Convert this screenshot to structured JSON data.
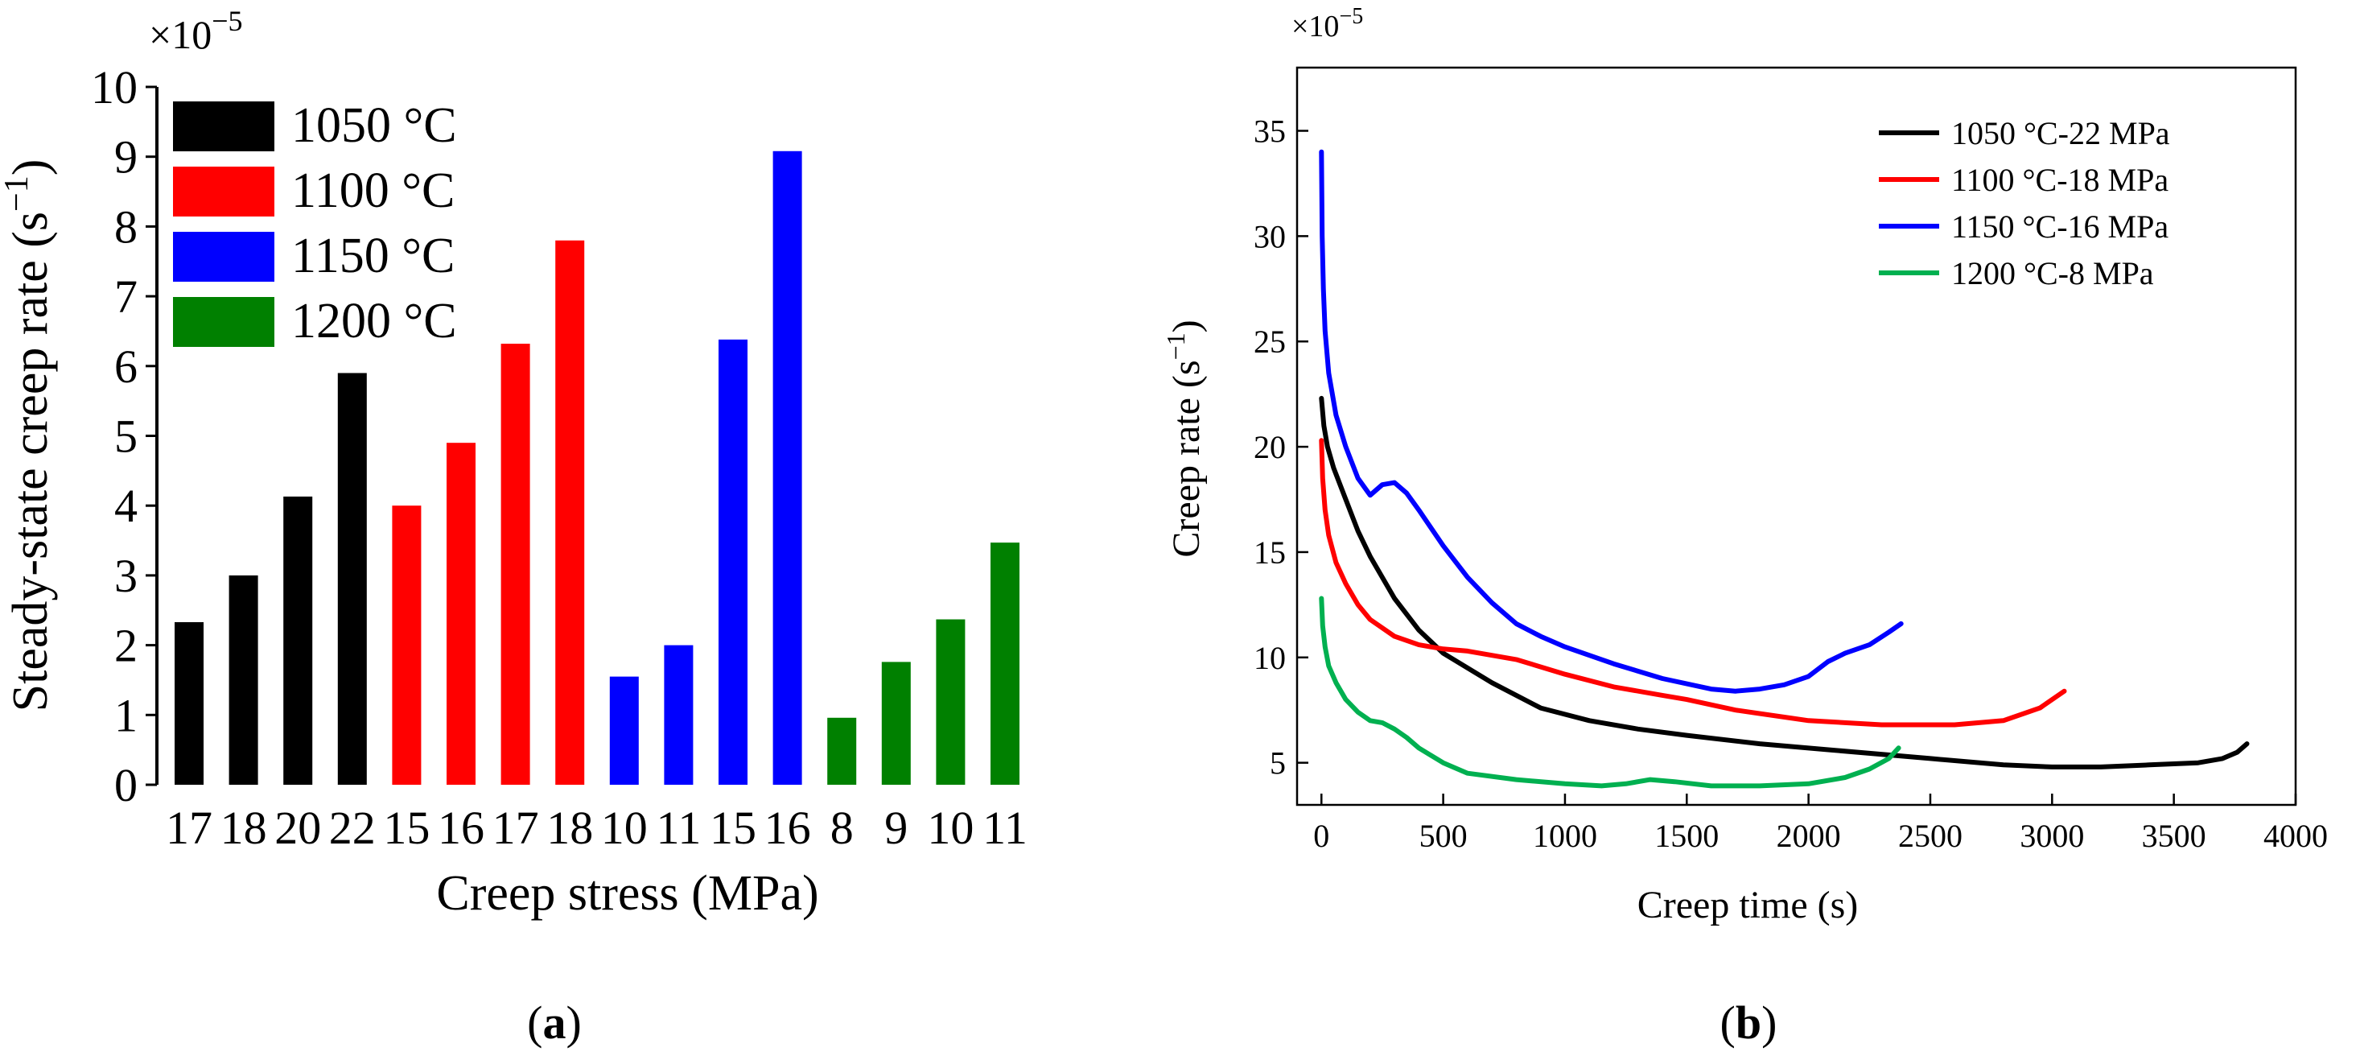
{
  "chart_data": [
    {
      "type": "bar",
      "panel_label": "a",
      "exponent_label": "×10",
      "exponent_power": "−5",
      "ylabel": "Steady-state creep rate (s",
      "ylabel_power": "−1",
      "ylabel_close": ")",
      "xlabel": "Creep stress (MPa)",
      "ylim": [
        0,
        10
      ],
      "yticks": [
        0,
        1,
        2,
        3,
        4,
        5,
        6,
        7,
        8,
        9,
        10
      ],
      "tick_labels": [
        "17",
        "18",
        "20",
        "22",
        "15",
        "16",
        "17",
        "18",
        "10",
        "11",
        "15",
        "16",
        "8",
        "9",
        "10",
        "11"
      ],
      "series": [
        {
          "name": "1050 °C",
          "color": "#000000",
          "values": [
            2.33,
            3.0,
            4.13,
            5.9
          ]
        },
        {
          "name": "1100 °C",
          "color": "#ff0000",
          "values": [
            4.0,
            4.9,
            6.32,
            7.8
          ]
        },
        {
          "name": "1150 °C",
          "color": "#0000ff",
          "values": [
            1.55,
            2.0,
            6.38,
            9.08
          ]
        },
        {
          "name": "1200 °C",
          "color": "#008000",
          "values": [
            0.96,
            1.76,
            2.37,
            3.47
          ]
        }
      ],
      "legend_position": "top-left"
    },
    {
      "type": "line",
      "panel_label": "b",
      "exponent_label": "×10",
      "exponent_power": "−5",
      "ylabel": "Creep rate (s",
      "ylabel_power": "−1",
      "ylabel_close": ")",
      "xlabel": "Creep time (s)",
      "xlim": [
        -100,
        4000
      ],
      "ylim": [
        3,
        38
      ],
      "xticks": [
        0,
        500,
        1000,
        1500,
        2000,
        2500,
        3000,
        3500,
        4000
      ],
      "yticks": [
        5,
        10,
        15,
        20,
        25,
        30,
        35
      ],
      "legend_position": "top-right",
      "series": [
        {
          "name": "1050 °C-22 MPa",
          "color": "#000000",
          "x": [
            0,
            10,
            25,
            50,
            100,
            150,
            200,
            300,
            400,
            500,
            700,
            900,
            1100,
            1300,
            1500,
            1800,
            2100,
            2500,
            2800,
            3000,
            3200,
            3400,
            3600,
            3700,
            3760,
            3800
          ],
          "y": [
            22.3,
            21.0,
            20.0,
            19.0,
            17.5,
            16.0,
            14.8,
            12.8,
            11.3,
            10.2,
            8.8,
            7.6,
            7.0,
            6.6,
            6.3,
            5.9,
            5.6,
            5.2,
            4.9,
            4.8,
            4.8,
            4.9,
            5.0,
            5.2,
            5.5,
            5.9
          ]
        },
        {
          "name": "1100 °C-18 MPa",
          "color": "#ff0000",
          "x": [
            0,
            5,
            15,
            30,
            60,
            100,
            150,
            200,
            300,
            400,
            500,
            600,
            800,
            1000,
            1200,
            1400,
            1500,
            1700,
            2000,
            2300,
            2600,
            2800,
            2950,
            3050
          ],
          "y": [
            20.3,
            18.5,
            17.0,
            15.8,
            14.5,
            13.5,
            12.5,
            11.8,
            11.0,
            10.6,
            10.4,
            10.3,
            9.9,
            9.2,
            8.6,
            8.2,
            8.0,
            7.5,
            7.0,
            6.8,
            6.8,
            7.0,
            7.6,
            8.4
          ]
        },
        {
          "name": "1150 °C-16 MPa",
          "color": "#0000ff",
          "x": [
            0,
            3,
            8,
            15,
            30,
            60,
            100,
            150,
            200,
            250,
            300,
            350,
            400,
            500,
            600,
            700,
            800,
            900,
            1000,
            1200,
            1400,
            1600,
            1700,
            1800,
            1900,
            2000,
            2080,
            2150,
            2250,
            2330,
            2380
          ],
          "y": [
            34.0,
            30.0,
            27.5,
            25.5,
            23.5,
            21.5,
            20.0,
            18.5,
            17.7,
            18.2,
            18.3,
            17.8,
            17.0,
            15.3,
            13.8,
            12.6,
            11.6,
            11.0,
            10.5,
            9.7,
            9.0,
            8.5,
            8.4,
            8.5,
            8.7,
            9.1,
            9.8,
            10.2,
            10.6,
            11.2,
            11.6
          ]
        },
        {
          "name": "1200 °C-8 MPa",
          "color": "#00b050",
          "x": [
            0,
            5,
            15,
            30,
            60,
            100,
            150,
            200,
            250,
            300,
            350,
            400,
            500,
            600,
            800,
            1000,
            1150,
            1250,
            1350,
            1450,
            1600,
            1800,
            2000,
            2150,
            2250,
            2330,
            2370
          ],
          "y": [
            12.8,
            11.5,
            10.5,
            9.6,
            8.8,
            8.0,
            7.4,
            7.0,
            6.9,
            6.6,
            6.2,
            5.7,
            5.0,
            4.5,
            4.2,
            4.0,
            3.9,
            4.0,
            4.2,
            4.1,
            3.9,
            3.9,
            4.0,
            4.3,
            4.7,
            5.2,
            5.7
          ]
        }
      ]
    }
  ]
}
